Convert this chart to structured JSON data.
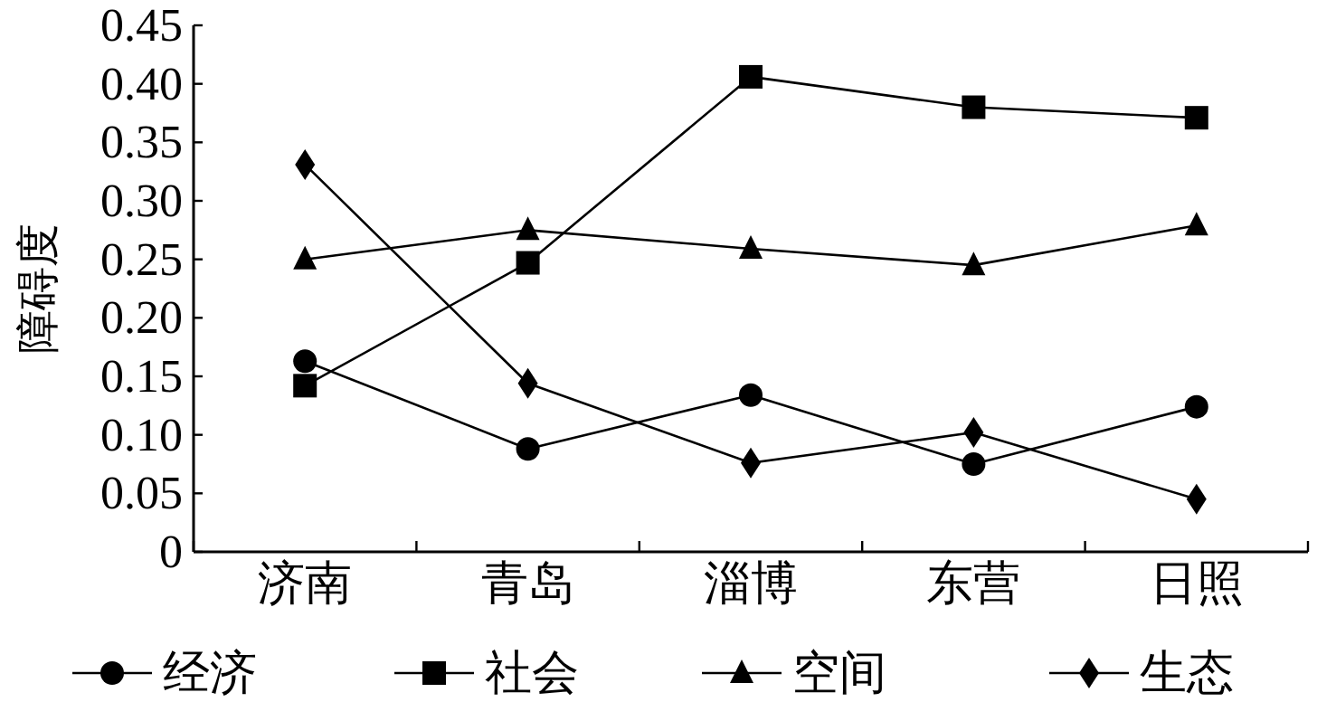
{
  "chart_data": {
    "type": "line",
    "ylabel": "障碍度",
    "categories": [
      "济南",
      "青岛",
      "淄博",
      "东营",
      "日照"
    ],
    "series": [
      {
        "name": "经济",
        "color": "#000000",
        "marker": "circle",
        "values": [
          0.163,
          0.088,
          0.134,
          0.075,
          0.124
        ]
      },
      {
        "name": "社会",
        "color": "#000000",
        "marker": "square",
        "values": [
          0.142,
          0.247,
          0.406,
          0.38,
          0.371
        ]
      },
      {
        "name": "空间",
        "color": "#000000",
        "marker": "triangle",
        "values": [
          0.25,
          0.275,
          0.259,
          0.245,
          0.279
        ]
      },
      {
        "name": "生态",
        "color": "#000000",
        "marker": "diamond",
        "values": [
          0.331,
          0.144,
          0.076,
          0.102,
          0.045
        ]
      }
    ],
    "ylim": [
      0,
      0.45
    ],
    "yticks": [
      0,
      0.05,
      {
        "value": 0.1,
        "label": "0.10"
      },
      0.15,
      {
        "value": 0.2,
        "label": "0.20"
      },
      0.25,
      {
        "value": 0.3,
        "label": "0.30"
      },
      0.35,
      {
        "value": 0.4,
        "label": "0.40"
      },
      0.45
    ],
    "grid": false,
    "legend": "bottom",
    "line_style": "solid"
  }
}
